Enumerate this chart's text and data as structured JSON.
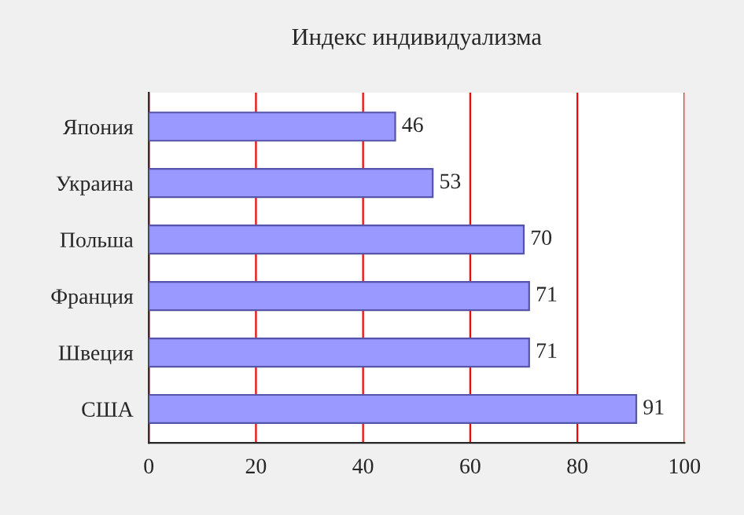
{
  "chart_data": {
    "type": "bar",
    "orientation": "horizontal",
    "title": "Индекс индивидуализма",
    "categories": [
      "Япония",
      "Украина",
      "Польша",
      "Франция",
      "Швеция",
      "США"
    ],
    "values": [
      46,
      53,
      70,
      71,
      71,
      91
    ],
    "color": "#9999ff",
    "xlim": [
      0,
      100
    ],
    "xticks": [
      0,
      20,
      40,
      60,
      80,
      100
    ],
    "grid": "x",
    "data_labels": true
  }
}
